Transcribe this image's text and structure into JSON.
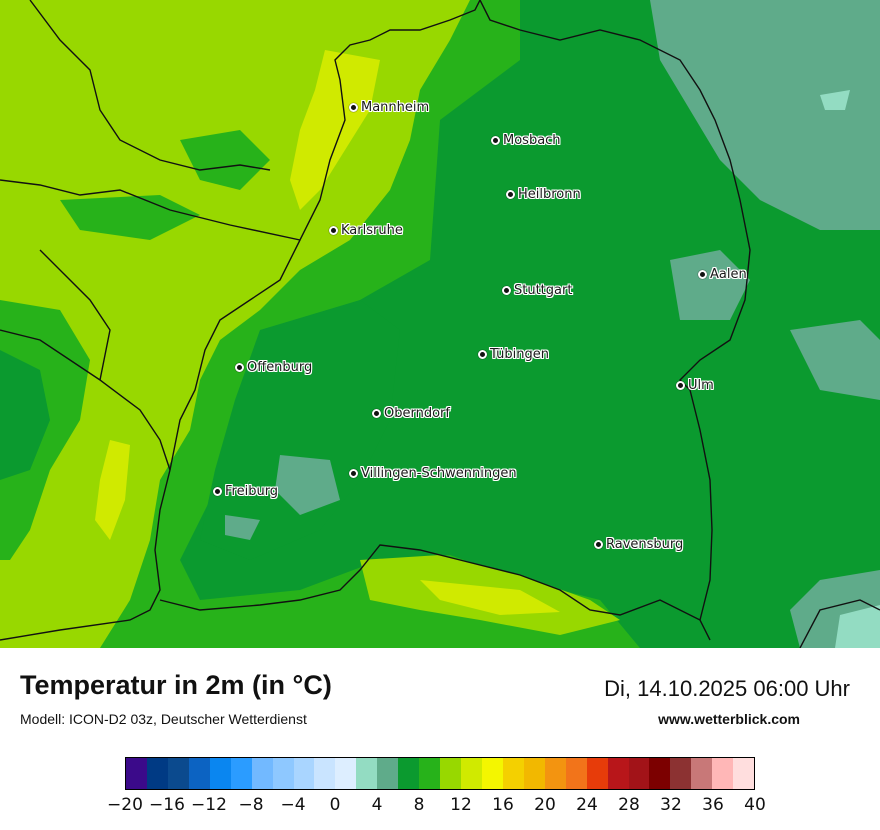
{
  "map": {
    "cities": [
      {
        "name": "Mannheim"
      },
      {
        "name": "Mosbach"
      },
      {
        "name": "Heilbronn"
      },
      {
        "name": "Karlsruhe"
      },
      {
        "name": "Aalen"
      },
      {
        "name": "Stuttgart"
      },
      {
        "name": "Tübingen"
      },
      {
        "name": "Offenburg"
      },
      {
        "name": "Ulm"
      },
      {
        "name": "Oberndorf"
      },
      {
        "name": "Villingen-Schwenningen"
      },
      {
        "name": "Freiburg"
      },
      {
        "name": "Ravensburg"
      }
    ]
  },
  "footer": {
    "title": "Temperatur in 2m (in °C)",
    "model": "Modell: ICON-D2 03z, Deutscher Wetterdienst",
    "datetime": "Di, 14.10.2025 06:00 Uhr",
    "website": "www.wetterblick.com"
  },
  "legend": {
    "colors": [
      "#3b0a8a",
      "#003a84",
      "#0b4a8e",
      "#0c63c2",
      "#0a86f0",
      "#2b9cff",
      "#72b9ff",
      "#8ec8ff",
      "#a9d5ff",
      "#c9e4ff",
      "#ddeeff",
      "#93dcc2",
      "#5fab8a",
      "#0b9a2f",
      "#27b21a",
      "#98d800",
      "#d0ea00",
      "#f4f600",
      "#f4d000",
      "#f2b800",
      "#f39410",
      "#f2741a",
      "#e73c0a",
      "#b8161a",
      "#a21318",
      "#7c0000",
      "#8c3232",
      "#c87878",
      "#ffb7b7",
      "#ffdede"
    ],
    "ticks": [
      "−20",
      "−16",
      "−12",
      "−8",
      "−4",
      "0",
      "4",
      "8",
      "12",
      "16",
      "20",
      "24",
      "28",
      "32",
      "36",
      "40"
    ],
    "tick_values": [
      -20,
      -16,
      -12,
      -8,
      -4,
      0,
      4,
      8,
      12,
      16,
      20,
      24,
      28,
      32,
      36,
      40
    ],
    "min": -20,
    "max": 40
  }
}
